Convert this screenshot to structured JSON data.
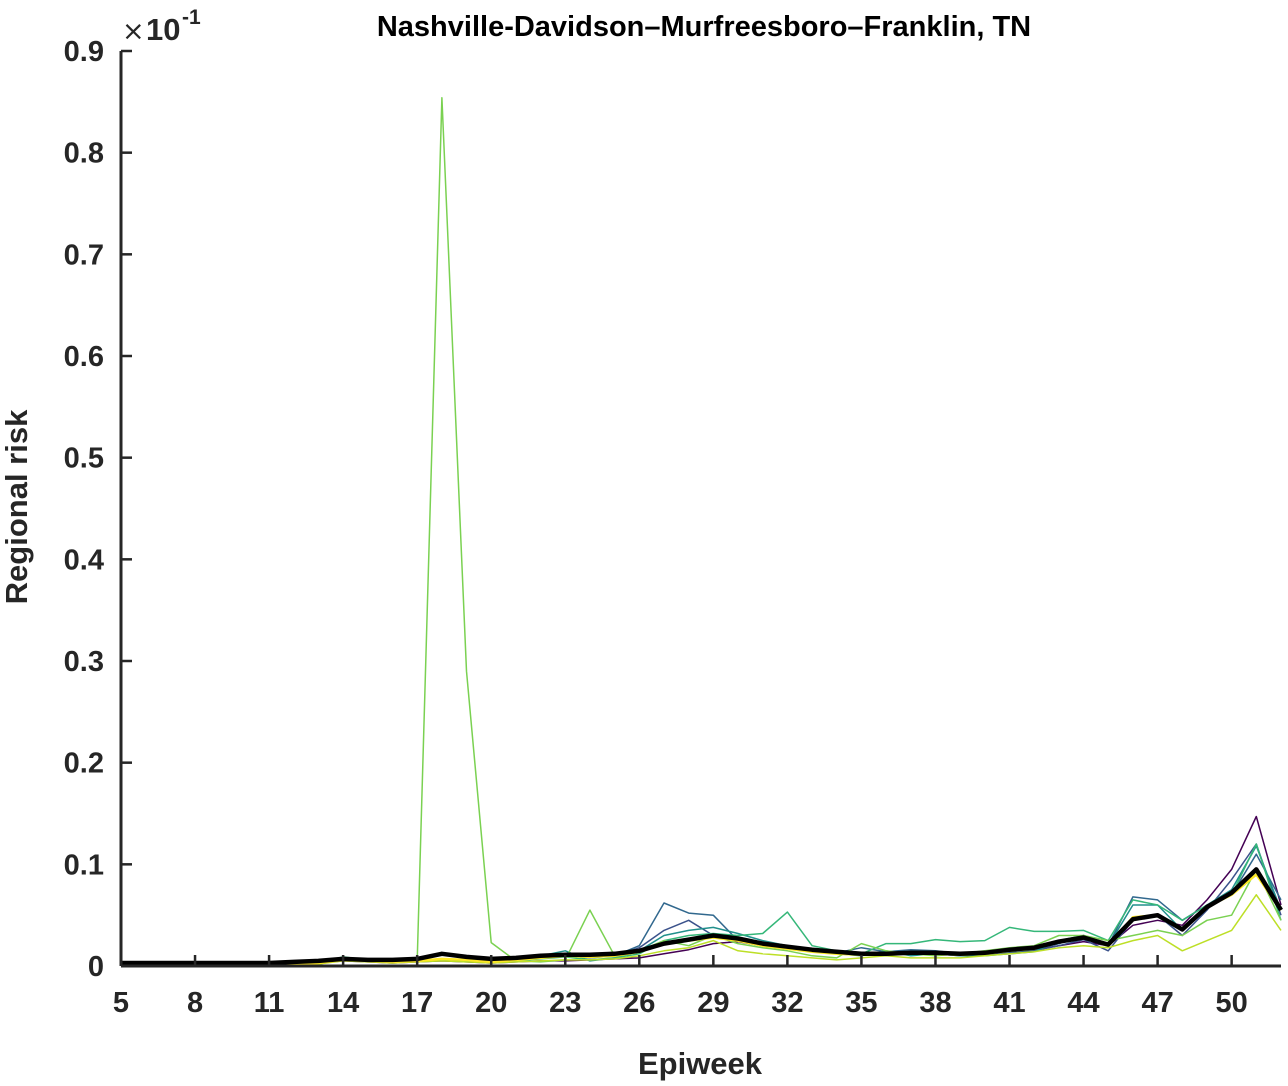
{
  "chart_data": {
    "type": "line",
    "title": "Nashville-Davidson–Murfreesboro–Franklin, TN",
    "xlabel": "Epiweek",
    "ylabel": "Regional risk",
    "exponent": {
      "times": "×",
      "base": "10",
      "power": "-1"
    },
    "xlim": [
      5,
      52
    ],
    "ylim": [
      0,
      0.9
    ],
    "xticks": [
      5,
      8,
      11,
      14,
      17,
      20,
      23,
      26,
      29,
      32,
      35,
      38,
      41,
      44,
      47,
      50
    ],
    "yticks": [
      0,
      0.1,
      0.2,
      0.3,
      0.4,
      0.5,
      0.6,
      0.7,
      0.8,
      0.9
    ],
    "x": [
      5,
      6,
      7,
      8,
      9,
      10,
      11,
      12,
      13,
      14,
      15,
      16,
      17,
      18,
      19,
      20,
      21,
      22,
      23,
      24,
      25,
      26,
      27,
      28,
      29,
      30,
      31,
      32,
      33,
      34,
      35,
      36,
      37,
      38,
      39,
      40,
      41,
      42,
      43,
      44,
      45,
      46,
      47,
      48,
      49,
      50,
      51,
      52
    ],
    "series": [
      {
        "color": "#440154",
        "width": 1.5,
        "values": [
          0,
          0,
          0,
          0,
          0,
          0,
          0,
          0.001,
          0.003,
          0.005,
          0.004,
          0.003,
          0.004,
          0.005,
          0.004,
          0.003,
          0.004,
          0.005,
          0.005,
          0.006,
          0.007,
          0.008,
          0.012,
          0.016,
          0.022,
          0.024,
          0.02,
          0.017,
          0.016,
          0.014,
          0.013,
          0.011,
          0.012,
          0.012,
          0.011,
          0.012,
          0.015,
          0.016,
          0.02,
          0.024,
          0.02,
          0.04,
          0.045,
          0.04,
          0.065,
          0.095,
          0.147,
          0.06
        ]
      },
      {
        "color": "#3b528b",
        "width": 1.5,
        "values": [
          0,
          0,
          0,
          0,
          0,
          0,
          0,
          0.001,
          0.003,
          0.006,
          0.005,
          0.004,
          0.005,
          0.007,
          0.006,
          0.005,
          0.006,
          0.009,
          0.012,
          0.01,
          0.01,
          0.018,
          0.035,
          0.045,
          0.03,
          0.028,
          0.022,
          0.019,
          0.016,
          0.014,
          0.012,
          0.012,
          0.013,
          0.012,
          0.01,
          0.011,
          0.013,
          0.015,
          0.02,
          0.026,
          0.015,
          0.045,
          0.05,
          0.03,
          0.055,
          0.085,
          0.12,
          0.05
        ]
      },
      {
        "color": "#31688e",
        "width": 1.5,
        "values": [
          0,
          0,
          0,
          0,
          0,
          0,
          0,
          0.001,
          0.002,
          0.006,
          0.005,
          0.004,
          0.005,
          0.006,
          0.006,
          0.005,
          0.007,
          0.008,
          0.01,
          0.008,
          0.01,
          0.02,
          0.062,
          0.052,
          0.05,
          0.025,
          0.02,
          0.018,
          0.016,
          0.013,
          0.018,
          0.014,
          0.016,
          0.015,
          0.012,
          0.012,
          0.014,
          0.016,
          0.022,
          0.03,
          0.02,
          0.068,
          0.065,
          0.045,
          0.06,
          0.07,
          0.11,
          0.065
        ]
      },
      {
        "color": "#21908c",
        "width": 1.5,
        "values": [
          0,
          0,
          0,
          0,
          0,
          0,
          0,
          0.001,
          0.003,
          0.008,
          0.006,
          0.005,
          0.005,
          0.007,
          0.006,
          0.004,
          0.006,
          0.01,
          0.015,
          0.005,
          0.008,
          0.015,
          0.03,
          0.035,
          0.038,
          0.032,
          0.025,
          0.02,
          0.015,
          0.012,
          0.01,
          0.015,
          0.01,
          0.012,
          0.01,
          0.01,
          0.012,
          0.014,
          0.025,
          0.03,
          0.02,
          0.06,
          0.06,
          0.035,
          0.06,
          0.075,
          0.118,
          0.055
        ]
      },
      {
        "color": "#35b779",
        "width": 1.5,
        "values": [
          0,
          0,
          0,
          0,
          0,
          0,
          0,
          0.001,
          0.003,
          0.009,
          0.006,
          0.004,
          0.005,
          0.006,
          0.005,
          0.004,
          0.005,
          0.007,
          0.009,
          0.006,
          0.008,
          0.012,
          0.025,
          0.03,
          0.032,
          0.03,
          0.032,
          0.053,
          0.02,
          0.015,
          0.012,
          0.022,
          0.022,
          0.026,
          0.024,
          0.025,
          0.038,
          0.034,
          0.034,
          0.035,
          0.025,
          0.065,
          0.06,
          0.045,
          0.06,
          0.07,
          0.12,
          0.045
        ]
      },
      {
        "color": "#7ad151",
        "width": 1.5,
        "values": [
          0,
          0,
          0,
          0,
          0,
          0,
          0,
          0.001,
          0.003,
          0.006,
          0.005,
          0.004,
          0.005,
          0.854,
          0.29,
          0.023,
          0.005,
          0.004,
          0.006,
          0.055,
          0.01,
          0.015,
          0.025,
          0.02,
          0.03,
          0.022,
          0.018,
          0.015,
          0.01,
          0.008,
          0.022,
          0.015,
          0.012,
          0.01,
          0.012,
          0.015,
          0.018,
          0.02,
          0.03,
          0.03,
          0.025,
          0.03,
          0.035,
          0.03,
          0.045,
          0.05,
          0.095,
          0.045
        ]
      },
      {
        "color": "#bddf26",
        "width": 1.5,
        "values": [
          0,
          0,
          0,
          0,
          0,
          0,
          0,
          0.001,
          0.002,
          0.005,
          0.004,
          0.003,
          0.004,
          0.005,
          0.004,
          0.003,
          0.004,
          0.005,
          0.006,
          0.006,
          0.007,
          0.01,
          0.015,
          0.018,
          0.025,
          0.015,
          0.012,
          0.01,
          0.008,
          0.006,
          0.008,
          0.01,
          0.008,
          0.008,
          0.008,
          0.01,
          0.012,
          0.014,
          0.018,
          0.02,
          0.018,
          0.025,
          0.03,
          0.015,
          0.025,
          0.035,
          0.07,
          0.035
        ]
      },
      {
        "color": "#fde725",
        "width": 2.5,
        "values": [
          0,
          0,
          0,
          0,
          0,
          0,
          0,
          0.001,
          0.003,
          0.006,
          0.005,
          0.004,
          0.005,
          0.007,
          0.006,
          0.004,
          0.006,
          0.008,
          0.01,
          0.009,
          0.01,
          0.014,
          0.022,
          0.025,
          0.028,
          0.025,
          0.02,
          0.017,
          0.014,
          0.012,
          0.011,
          0.012,
          0.012,
          0.012,
          0.011,
          0.012,
          0.015,
          0.017,
          0.024,
          0.028,
          0.02,
          0.048,
          0.05,
          0.036,
          0.058,
          0.07,
          0.09,
          0.055
        ]
      },
      {
        "color": "#000000",
        "width": 4.5,
        "values": [
          0.003,
          0.003,
          0.003,
          0.003,
          0.003,
          0.003,
          0.003,
          0.004,
          0.005,
          0.007,
          0.006,
          0.006,
          0.007,
          0.012,
          0.009,
          0.007,
          0.008,
          0.01,
          0.011,
          0.011,
          0.012,
          0.015,
          0.022,
          0.026,
          0.03,
          0.027,
          0.022,
          0.019,
          0.016,
          0.014,
          0.012,
          0.012,
          0.013,
          0.013,
          0.012,
          0.013,
          0.016,
          0.018,
          0.024,
          0.028,
          0.021,
          0.046,
          0.05,
          0.036,
          0.058,
          0.072,
          0.095,
          0.055
        ]
      }
    ]
  }
}
